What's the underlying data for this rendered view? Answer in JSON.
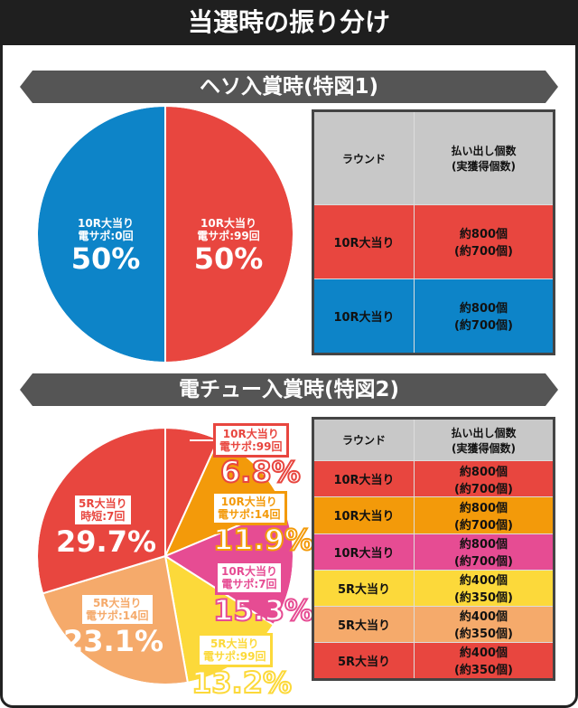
{
  "title": "当選時の振り分け",
  "colors": {
    "red": "#e8463f",
    "blue": "#0d84c8",
    "orange": "#f39a0a",
    "pink": "#e64c93",
    "yellow": "#fcd93a",
    "lightorange": "#f5aa6b",
    "header_gray": "#c8c8c8"
  },
  "chart_data": [
    {
      "type": "pie",
      "title": "ヘソ入賞時(特図1)",
      "slices": [
        {
          "label": "10R大当り",
          "sub": "電サポ:99回",
          "value": 50,
          "color": "#e8463f"
        },
        {
          "label": "10R大当り",
          "sub": "電サポ:0回",
          "value": 50,
          "color": "#0d84c8"
        }
      ]
    },
    {
      "type": "pie",
      "title": "電チュー入賞時(特図2)",
      "slices": [
        {
          "label": "10R大当り",
          "sub": "電サポ:99回",
          "value": 6.8,
          "color": "#e8463f"
        },
        {
          "label": "10R大当り",
          "sub": "電サポ:14回",
          "value": 11.9,
          "color": "#f39a0a"
        },
        {
          "label": "10R大当り",
          "sub": "電サポ:7回",
          "value": 15.3,
          "color": "#e64c93"
        },
        {
          "label": "5R大当り",
          "sub": "電サポ:99回",
          "value": 13.2,
          "color": "#fcd93a"
        },
        {
          "label": "5R大当り",
          "sub": "電サポ:14回",
          "value": 23.1,
          "color": "#f5aa6b"
        },
        {
          "label": "5R大当り",
          "sub": "時短:7回",
          "value": 29.7,
          "color": "#e8463f"
        }
      ]
    }
  ],
  "table_headers": {
    "round": "ラウンド",
    "payout": "払い出し個数",
    "payout2": "(実獲得個数)"
  },
  "table1": [
    {
      "round": "10R大当り",
      "payout": "約800個",
      "net": "(約700個)",
      "color": "#e8463f"
    },
    {
      "round": "10R大当り",
      "payout": "約800個",
      "net": "(約700個)",
      "color": "#0d84c8"
    }
  ],
  "table2": [
    {
      "round": "10R大当り",
      "payout": "約800個",
      "net": "(約700個)",
      "color": "#e8463f"
    },
    {
      "round": "10R大当り",
      "payout": "約800個",
      "net": "(約700個)",
      "color": "#f39a0a"
    },
    {
      "round": "10R大当り",
      "payout": "約800個",
      "net": "(約700個)",
      "color": "#e64c93"
    },
    {
      "round": "5R大当り",
      "payout": "約400個",
      "net": "(約350個)",
      "color": "#fcd93a"
    },
    {
      "round": "5R大当り",
      "payout": "約400個",
      "net": "(約350個)",
      "color": "#f5aa6b"
    },
    {
      "round": "5R大当り",
      "payout": "約400個",
      "net": "(約350個)",
      "color": "#e8463f"
    }
  ]
}
